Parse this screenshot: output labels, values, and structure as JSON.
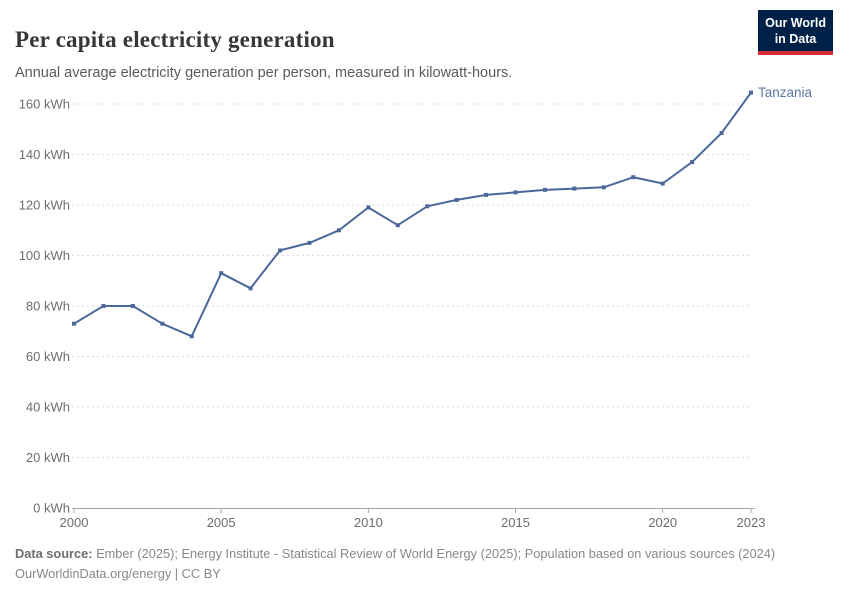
{
  "header": {
    "title": "Per capita electricity generation",
    "subtitle": "Annual average electricity generation per person, measured in kilowatt-hours."
  },
  "logo": {
    "line1": "Our World",
    "line2": "in Data"
  },
  "chart_data": {
    "type": "line",
    "title": "Per capita electricity generation",
    "unit": "kWh",
    "x": [
      2000,
      2001,
      2002,
      2003,
      2004,
      2005,
      2006,
      2007,
      2008,
      2009,
      2010,
      2011,
      2012,
      2013,
      2014,
      2015,
      2016,
      2017,
      2018,
      2019,
      2020,
      2021,
      2022,
      2023
    ],
    "series": [
      {
        "name": "Tanzania",
        "color": "#4C689B",
        "values": [
          73,
          80,
          80,
          73,
          68,
          93,
          87,
          102,
          105,
          110,
          119,
          112,
          119.5,
          122,
          124,
          125,
          126,
          126.5,
          127,
          131,
          128.5,
          137,
          148.5,
          164.5
        ]
      }
    ],
    "entity_label": "Tanzania",
    "x_ticks": [
      2000,
      2005,
      2010,
      2015,
      2020,
      2023
    ],
    "y_ticks": [
      0,
      20,
      40,
      60,
      80,
      100,
      120,
      140,
      160
    ],
    "y_tick_suffix": " kWh",
    "xlim": [
      2000,
      2023
    ],
    "ylim": [
      0,
      160
    ],
    "grid": "horizontal-dashed",
    "legend": "entity-label-right"
  },
  "footer": {
    "source_label": "Data source:",
    "source_text": "Ember (2025); Energy Institute - Statistical Review of World Energy (2025); Population based on various sources (2024)",
    "license_line": "OurWorldinData.org/energy | CC BY"
  },
  "colors": {
    "line": "#4C689B",
    "entity_label": "#5878A3",
    "grid": "#dddddd",
    "axis": "#a5a5a5",
    "tick_text": "#6e6e6e",
    "logo_bg": "#002147",
    "logo_accent": "#d42b36"
  }
}
